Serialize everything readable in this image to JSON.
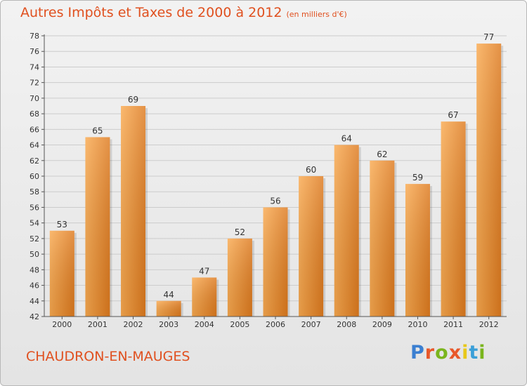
{
  "title": "Autres Impôts et Taxes de 2000 à 2012",
  "subtitle": "(en milliers d'€)",
  "city": "CHAUDRON-EN-MAUGES",
  "logo": {
    "text": "Proxiti",
    "letter_colors": [
      "#3b7fd1",
      "#e8582a",
      "#7ab51d",
      "#e8582a",
      "#e8c81a",
      "#3b9fd8",
      "#7ab51d"
    ]
  },
  "colors": {
    "bar_light": "#f9a94f",
    "bar_dark": "#de7a1e",
    "text": "#e0501f",
    "grid": "#cccccc",
    "axis": "#555555"
  },
  "chart_data": {
    "type": "bar",
    "categories": [
      "2000",
      "2001",
      "2002",
      "2003",
      "2004",
      "2005",
      "2006",
      "2007",
      "2008",
      "2009",
      "2010",
      "2011",
      "2012"
    ],
    "values": [
      53,
      65,
      69,
      44,
      47,
      52,
      56,
      60,
      64,
      62,
      59,
      67,
      77
    ],
    "ylim": [
      42,
      78
    ],
    "yticks": [
      42,
      44,
      46,
      48,
      50,
      52,
      54,
      56,
      58,
      60,
      62,
      64,
      66,
      68,
      70,
      72,
      74,
      76,
      78
    ],
    "grid": true,
    "data_labels": true
  }
}
